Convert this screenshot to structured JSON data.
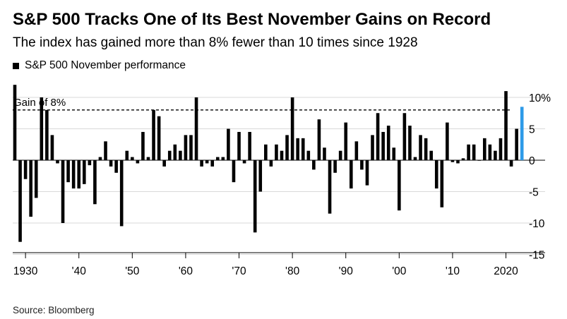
{
  "title": "S&P 500 Tracks One of Its Best November Gains on Record",
  "subtitle": "The index has gained more than 8% fewer than 10 times since 1928",
  "source": "Source: Bloomberg",
  "chart_data": {
    "type": "bar",
    "legend": [
      {
        "name": "S&P 500 November performance",
        "color": "#000000"
      }
    ],
    "x": [
      1928,
      1929,
      1930,
      1931,
      1932,
      1933,
      1934,
      1935,
      1936,
      1937,
      1938,
      1939,
      1940,
      1941,
      1942,
      1943,
      1944,
      1945,
      1946,
      1947,
      1948,
      1949,
      1950,
      1951,
      1952,
      1953,
      1954,
      1955,
      1956,
      1957,
      1958,
      1959,
      1960,
      1961,
      1962,
      1963,
      1964,
      1965,
      1966,
      1967,
      1968,
      1969,
      1970,
      1971,
      1972,
      1973,
      1974,
      1975,
      1976,
      1977,
      1978,
      1979,
      1980,
      1981,
      1982,
      1983,
      1984,
      1985,
      1986,
      1987,
      1988,
      1989,
      1990,
      1991,
      1992,
      1993,
      1994,
      1995,
      1996,
      1997,
      1998,
      1999,
      2000,
      2001,
      2002,
      2003,
      2004,
      2005,
      2006,
      2007,
      2008,
      2009,
      2010,
      2011,
      2012,
      2013,
      2014,
      2015,
      2016,
      2017,
      2018,
      2019,
      2020,
      2021,
      2022,
      2023
    ],
    "values": [
      12.0,
      -13.0,
      -3.0,
      -9.0,
      -6.0,
      10.0,
      8.0,
      4.0,
      -0.5,
      -10.0,
      -3.5,
      -4.5,
      -4.5,
      -3.8,
      -0.8,
      -7.0,
      0.5,
      3.0,
      -1.0,
      -2.0,
      -10.5,
      1.5,
      0.5,
      -0.5,
      4.5,
      0.5,
      8.0,
      7.0,
      -1.0,
      1.5,
      2.5,
      1.5,
      4.0,
      4.0,
      10.0,
      -1.0,
      -0.5,
      -1.0,
      0.5,
      0.5,
      5.0,
      -3.5,
      4.5,
      -0.5,
      4.5,
      -11.5,
      -5.0,
      2.5,
      -1.0,
      2.5,
      1.5,
      4.0,
      10.0,
      3.5,
      3.5,
      1.5,
      -1.5,
      6.5,
      2.0,
      -8.5,
      -2.0,
      1.5,
      6.0,
      -4.5,
      3.0,
      -1.5,
      -4.0,
      4.0,
      7.5,
      4.5,
      5.5,
      2.0,
      -8.0,
      7.5,
      5.5,
      0.5,
      4.0,
      3.5,
      1.5,
      -4.5,
      -7.5,
      6.0,
      -0.3,
      -0.5,
      0.3,
      2.5,
      2.5,
      0.0,
      3.5,
      2.5,
      1.5,
      3.5,
      11.0,
      -1.0,
      5.0,
      8.5
    ],
    "highlight": {
      "x": 2023,
      "color": "#2d9ae8"
    },
    "reference_line": {
      "value": 8,
      "label": "Gain of 8%"
    },
    "ylim": [
      -16,
      13
    ],
    "yticks": [
      10,
      5,
      0,
      -5,
      -10,
      -15
    ],
    "ytick_labels": [
      "10%",
      "5",
      "0",
      "-5",
      "-10",
      "-15"
    ],
    "xticks": [
      1930,
      1940,
      1950,
      1960,
      1970,
      1980,
      1990,
      2000,
      2010,
      2020
    ],
    "xtick_labels": [
      "1930",
      "'40",
      "'50",
      "'60",
      "'70",
      "'80",
      "'90",
      "'00",
      "'10",
      "2020"
    ],
    "grid": true,
    "legend_position": "top-left"
  }
}
